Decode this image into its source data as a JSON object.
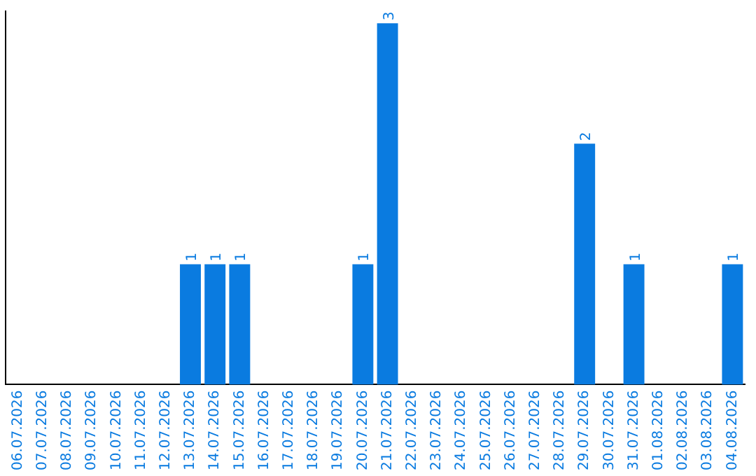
{
  "chart_data": {
    "type": "bar",
    "categories": [
      "06.07.2026",
      "07.07.2026",
      "08.07.2026",
      "09.07.2026",
      "10.07.2026",
      "11.07.2026",
      "12.07.2026",
      "13.07.2026",
      "14.07.2026",
      "15.07.2026",
      "16.07.2026",
      "17.07.2026",
      "18.07.2026",
      "19.07.2026",
      "20.07.2026",
      "21.07.2026",
      "22.07.2026",
      "23.07.2026",
      "24.07.2026",
      "25.07.2026",
      "26.07.2026",
      "27.07.2026",
      "28.07.2026",
      "29.07.2026",
      "30.07.2026",
      "31.07.2026",
      "01.08.2026",
      "02.08.2026",
      "03.08.2026",
      "04.08.2026"
    ],
    "values": [
      0,
      0,
      0,
      0,
      0,
      0,
      0,
      1,
      1,
      1,
      0,
      0,
      0,
      0,
      1,
      3,
      0,
      0,
      0,
      0,
      0,
      0,
      0,
      2,
      0,
      1,
      0,
      0,
      0,
      1
    ],
    "value_labels": [
      null,
      null,
      null,
      null,
      null,
      null,
      null,
      "1",
      "1",
      "1",
      null,
      null,
      null,
      null,
      "1",
      "3",
      null,
      null,
      null,
      null,
      null,
      null,
      null,
      "2",
      null,
      "1",
      null,
      null,
      null,
      "1"
    ],
    "color": "#0a7be0",
    "ylim": [
      0,
      3.1
    ],
    "tick_labels": "x",
    "grid": false,
    "legend": false
  }
}
